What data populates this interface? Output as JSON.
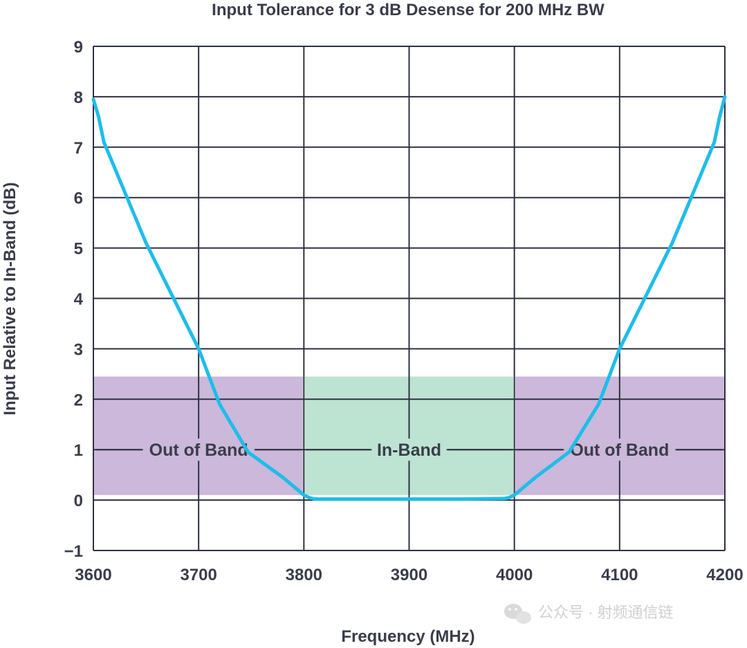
{
  "chart_data": {
    "type": "line",
    "title": "Input Tolerance for 3 dB Desense for 200 MHz BW",
    "xlabel": "Frequency (MHz)",
    "ylabel": "Input Relative to In-Band (dB)",
    "xlim": [
      3600,
      4200
    ],
    "ylim": [
      -1,
      9
    ],
    "x_ticks": [
      3600,
      3700,
      3800,
      3900,
      4000,
      4100,
      4200
    ],
    "y_ticks": [
      9,
      8,
      7,
      6,
      5,
      4,
      3,
      2,
      1,
      0,
      -1
    ],
    "y_tick_labels": [
      "9",
      "8",
      "7",
      "6",
      "5",
      "4",
      "3",
      "2",
      "1",
      "0",
      "−1"
    ],
    "grid": true,
    "series": [
      {
        "color": "#1ebdea",
        "x": [
          3600,
          3605,
          3610,
          3650,
          3700,
          3720,
          3747,
          3780,
          3800,
          3805,
          3810,
          3850,
          3900,
          3950,
          3990,
          3995,
          4000,
          4020,
          4052,
          4080,
          4100,
          4150,
          4190,
          4195,
          4200
        ],
        "y": [
          7.95,
          7.6,
          7.1,
          5.1,
          3.0,
          1.9,
          0.95,
          0.45,
          0.1,
          0.05,
          0.02,
          0.02,
          0.02,
          0.02,
          0.03,
          0.05,
          0.1,
          0.45,
          0.95,
          1.9,
          3.0,
          5.1,
          7.1,
          7.6,
          8.0
        ]
      }
    ],
    "bands": [
      {
        "label": "Out of Band",
        "x": [
          3600,
          3800
        ],
        "y": [
          0.1,
          2.45
        ],
        "color": "#cbb8da"
      },
      {
        "label": "In-Band",
        "x": [
          3800,
          4000
        ],
        "y": [
          0.1,
          2.45
        ],
        "color": "#bde3d3"
      },
      {
        "label": "Out of Band",
        "x": [
          4000,
          4200
        ],
        "y": [
          0.1,
          2.45
        ],
        "color": "#cbb8da"
      }
    ],
    "band_label_y": 1,
    "colors": {
      "grid": "#2e3140",
      "line": "#1ebdea",
      "text": "#3a3d4a"
    }
  },
  "watermark": {
    "icon": "wechat-icon",
    "text": "公众号 · 射频通信链"
  }
}
